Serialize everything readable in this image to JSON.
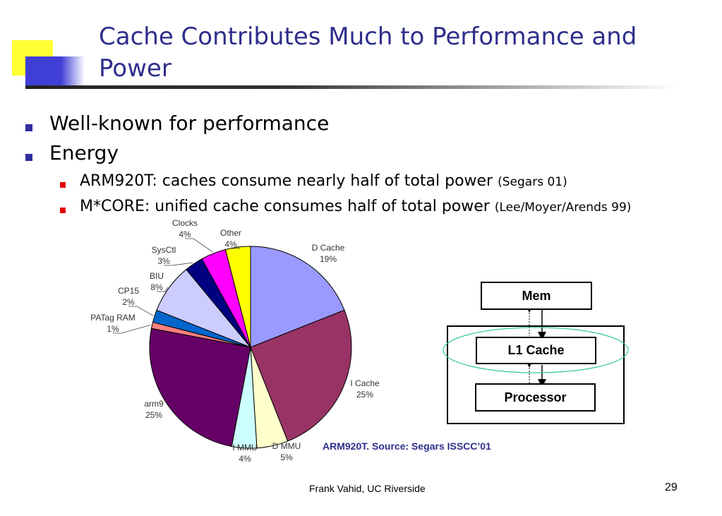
{
  "slide": {
    "title_line1": "Cache Contributes Much to Performance and",
    "title_line2": "Power",
    "bullets": [
      "Well-known for performance",
      "Energy"
    ],
    "sub_bullets": [
      {
        "text": "ARM920T: caches consume nearly half of total power",
        "source": "(Segars 01)"
      },
      {
        "text": "M*CORE: unified cache consumes half of total power",
        "source": "(Lee/Moyer/Arends 99)"
      }
    ],
    "caption": "ARM920T. Source: Segars ISSCC’01",
    "footer": "Frank Vahid, UC Riverside",
    "page_number": "29"
  },
  "diagram": {
    "mem": "Mem",
    "l1_cache": "L1 Cache",
    "processor": "Processor",
    "ellipse_color": "#33cc99"
  },
  "chart_data": {
    "type": "pie",
    "slices": [
      {
        "name": "D Cache",
        "value": 19,
        "label": "19%",
        "color": "#9999ff"
      },
      {
        "name": "I Cache",
        "value": 25,
        "label": "25%",
        "color": "#993366"
      },
      {
        "name": "D MMU",
        "value": 5,
        "label": "5%",
        "color": "#ffffcc"
      },
      {
        "name": "I MMU",
        "value": 4,
        "label": "4%",
        "color": "#ccffff"
      },
      {
        "name": "arm9",
        "value": 25,
        "label": "25%",
        "color": "#660066"
      },
      {
        "name": "PATag RAM",
        "value": 1,
        "label": "1%",
        "color": "#ff8080"
      },
      {
        "name": "CP15",
        "value": 2,
        "label": "2%",
        "color": "#0066cc"
      },
      {
        "name": "BIU",
        "value": 8,
        "label": "8%",
        "color": "#ccccff"
      },
      {
        "name": "SysCtl",
        "value": 3,
        "label": "3%",
        "color": "#000080"
      },
      {
        "name": "Clocks",
        "value": 4,
        "label": "4%",
        "color": "#ff00ff"
      },
      {
        "name": "Other",
        "value": 4,
        "label": "4%",
        "color": "#ffff00"
      }
    ]
  }
}
